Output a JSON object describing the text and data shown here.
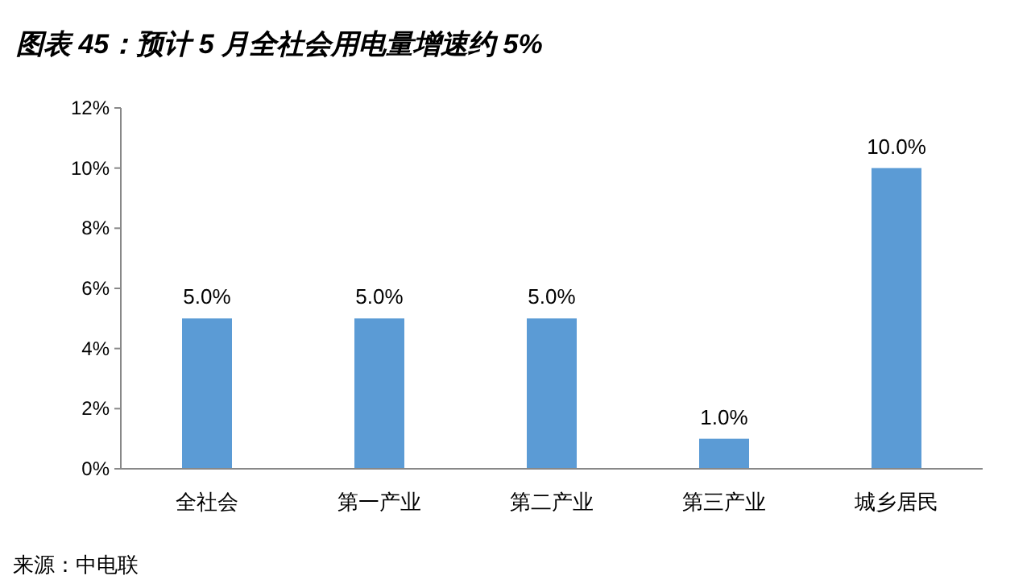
{
  "chart_data": {
    "type": "bar",
    "title": "图表 45：预计 5 月全社会用电量增速约 5%",
    "categories": [
      "全社会",
      "第一产业",
      "第二产业",
      "第三产业",
      "城乡居民"
    ],
    "values": [
      5.0,
      5.0,
      5.0,
      1.0,
      10.0
    ],
    "value_labels": [
      "5.0%",
      "5.0%",
      "5.0%",
      "1.0%",
      "10.0%"
    ],
    "color": "#5b9bd5",
    "ylim": [
      0,
      12
    ],
    "yticks": [
      {
        "value": 0,
        "label": "0%"
      },
      {
        "value": 2,
        "label": "2%"
      },
      {
        "value": 4,
        "label": "4%"
      },
      {
        "value": 6,
        "label": "6%"
      },
      {
        "value": 8,
        "label": "8%"
      },
      {
        "value": 10,
        "label": "10%"
      },
      {
        "value": 12,
        "label": "12%"
      }
    ],
    "annotations": [
      "来源：中电联"
    ]
  }
}
